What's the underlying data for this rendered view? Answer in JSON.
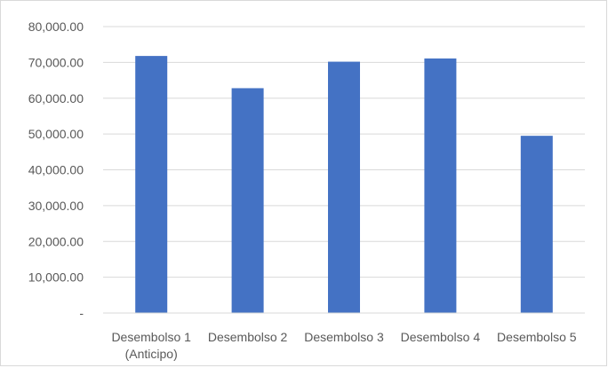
{
  "chart_data": {
    "type": "bar",
    "title": "",
    "xlabel": "",
    "ylabel": "",
    "categories": [
      [
        "Desembolso 1",
        "(Anticipo)"
      ],
      [
        "Desembolso 2"
      ],
      [
        "Desembolso 3"
      ],
      [
        "Desembolso 4"
      ],
      [
        "Desembolso 5"
      ]
    ],
    "values": [
      71800,
      62800,
      70200,
      71100,
      49500
    ],
    "ylim": [
      0,
      80000
    ],
    "yticks": [
      0,
      10000,
      20000,
      30000,
      40000,
      50000,
      60000,
      70000,
      80000
    ],
    "ytick_labels": [
      "-",
      "10,000.00",
      "20,000.00",
      "30,000.00",
      "40,000.00",
      "50,000.00",
      "60,000.00",
      "70,000.00",
      "80,000.00"
    ],
    "grid": true,
    "legend": "none",
    "colors": {
      "bar": "#4472c4",
      "grid": "#d9d9d9",
      "text": "#595959",
      "border": "#d9d9d9"
    }
  }
}
